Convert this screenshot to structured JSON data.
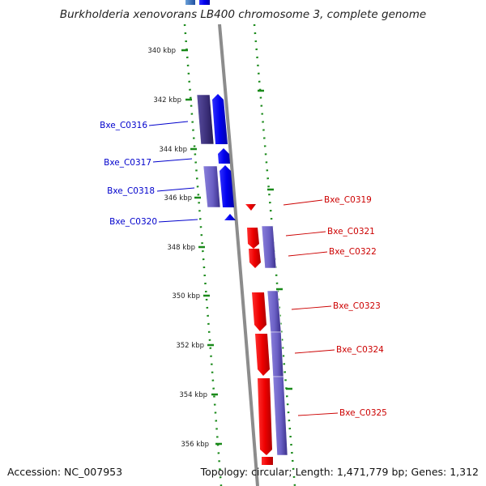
{
  "title": "Burkholderia xenovorans LB400 chromosome 3, complete genome",
  "accession": "Accession: NC_007953",
  "summary": "Topology: circular; Length: 1,471,779 bp; Genes: 1,312",
  "colors": {
    "forward": "#0000ee",
    "reverse": "#ee0000",
    "cog": "#6a5fc4",
    "backbone": "#8c8c8c",
    "ticks": "#1a8a1a"
  },
  "ticks": [
    "340 kbp",
    "342 kbp",
    "344 kbp",
    "346 kbp",
    "348 kbp",
    "350 kbp",
    "352 kbp",
    "354 kbp",
    "356 kbp"
  ],
  "genes": {
    "forward": [
      "Bxe_C0316",
      "Bxe_C0317",
      "Bxe_C0318",
      "Bxe_C0320"
    ],
    "reverse": [
      "Bxe_C0319",
      "Bxe_C0321",
      "Bxe_C0322",
      "Bxe_C0323",
      "Bxe_C0324",
      "Bxe_C0325"
    ]
  }
}
